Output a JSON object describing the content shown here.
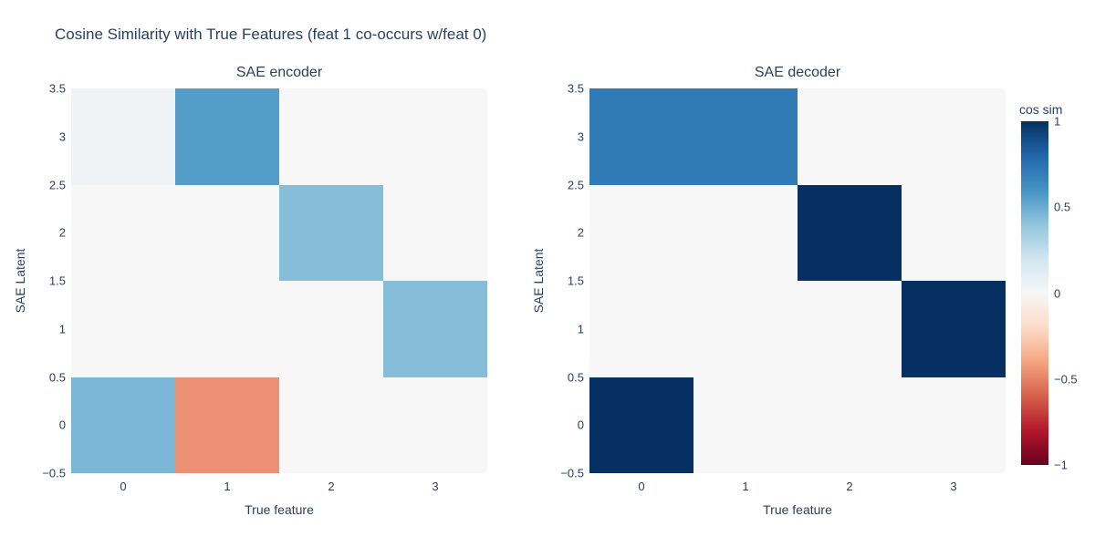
{
  "figure": {
    "title": "Cosine Similarity with True Features (feat 1 co-occurs w/feat 0)"
  },
  "colors": {
    "text": "#2a3f5f",
    "background": "#ffffff",
    "zero_cell": "#f7f7f7",
    "max_blue": "#053061",
    "min_red": "#67001f"
  },
  "chart_data": [
    {
      "type": "heatmap",
      "title": "SAE encoder",
      "xlabel": "True feature",
      "ylabel": "SAE Latent",
      "x_ticks": [
        "0",
        "1",
        "2",
        "3"
      ],
      "y_ticks": [
        "3.5",
        "3",
        "2.5",
        "2",
        "1.5",
        "1",
        "0.5",
        "0",
        "−0.5"
      ],
      "x_range": [
        -0.5,
        3.5
      ],
      "y_range": [
        -0.5,
        3.5
      ],
      "z_rows_top_to_bottom": [
        [
          0.04,
          0.56,
          0,
          0
        ],
        [
          0,
          0,
          0.43,
          0
        ],
        [
          0,
          0,
          0,
          0.43
        ],
        [
          0.46,
          -0.46,
          0,
          0
        ]
      ]
    },
    {
      "type": "heatmap",
      "title": "SAE decoder",
      "xlabel": "True feature",
      "ylabel": "SAE Latent",
      "x_ticks": [
        "0",
        "1",
        "2",
        "3"
      ],
      "y_ticks": [
        "3.5",
        "3",
        "2.5",
        "2",
        "1.5",
        "1",
        "0.5",
        "0",
        "−0.5"
      ],
      "x_range": [
        -0.5,
        3.5
      ],
      "y_range": [
        -0.5,
        3.5
      ],
      "z_rows_top_to_bottom": [
        [
          0.71,
          0.71,
          0,
          0
        ],
        [
          0,
          0,
          1,
          0
        ],
        [
          0,
          0,
          0,
          1
        ],
        [
          1,
          0,
          0,
          0
        ]
      ]
    }
  ],
  "colorbar": {
    "title": "cos sim",
    "ticks": [
      "1",
      "0.5",
      "0",
      "−0.5",
      "−1"
    ],
    "min": -1,
    "max": 1,
    "colorscale": [
      {
        "t": 0.0,
        "color": "#67001f"
      },
      {
        "t": 0.1,
        "color": "#b2182b"
      },
      {
        "t": 0.2,
        "color": "#d6604d"
      },
      {
        "t": 0.3,
        "color": "#f4a582"
      },
      {
        "t": 0.4,
        "color": "#fddbc7"
      },
      {
        "t": 0.5,
        "color": "#f7f7f7"
      },
      {
        "t": 0.6,
        "color": "#d1e5f0"
      },
      {
        "t": 0.7,
        "color": "#92c5de"
      },
      {
        "t": 0.8,
        "color": "#4393c3"
      },
      {
        "t": 0.9,
        "color": "#2166ac"
      },
      {
        "t": 1.0,
        "color": "#053061"
      }
    ]
  }
}
